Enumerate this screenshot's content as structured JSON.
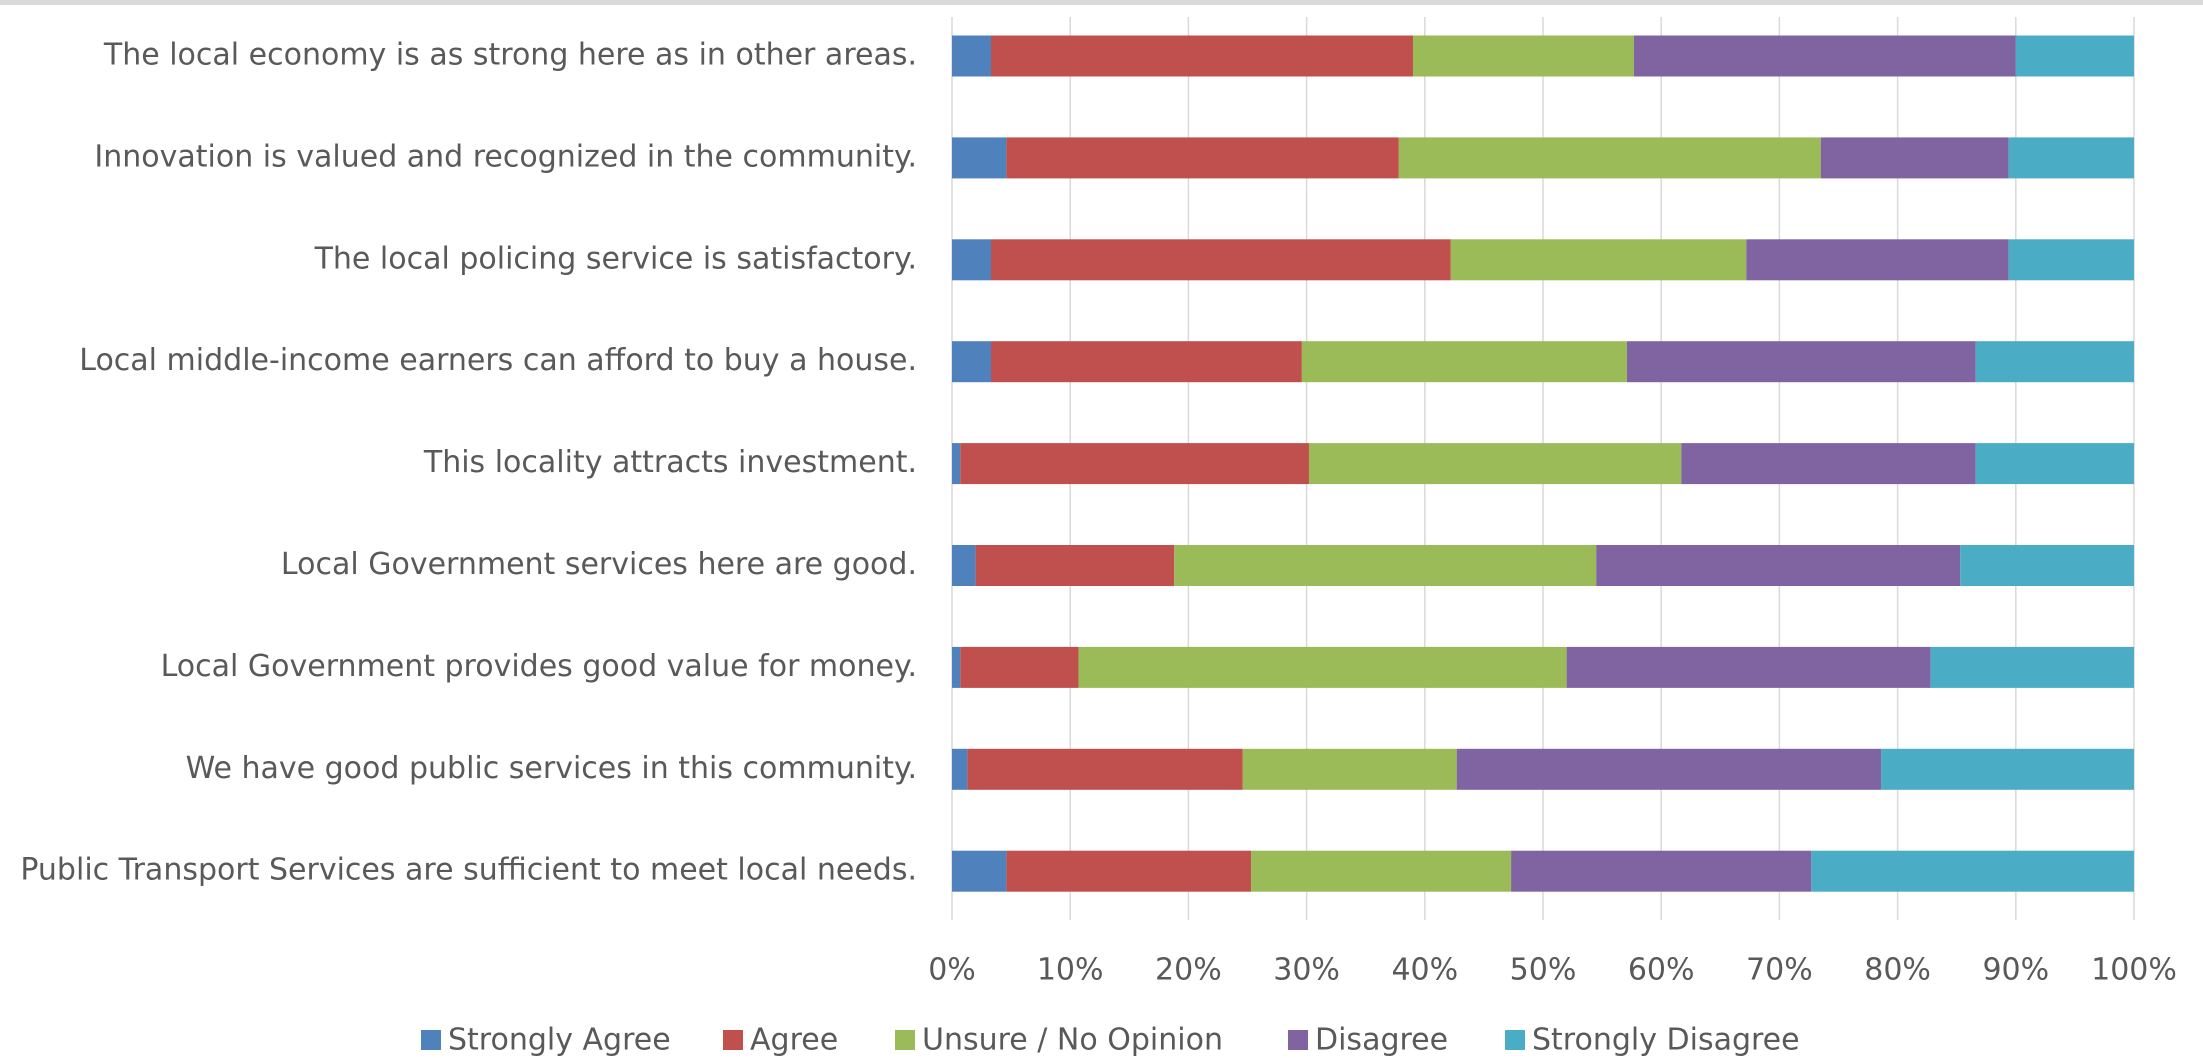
{
  "chart_data": {
    "type": "stacked-bar-horizontal",
    "categories": [
      "The local economy is as strong here as in other areas.",
      "Innovation is valued and recognized in the community.",
      "The local policing service is satisfactory.",
      "Local middle-income earners can afford to buy a house.",
      "This locality attracts investment.",
      "Local Government services here are good.",
      "Local Government provides good value for money.",
      "We have good public services in this community.",
      "Public Transport Services are sufficient to meet local needs."
    ],
    "series": [
      {
        "name": "Strongly Agree",
        "color": "#4f81bd",
        "values": [
          3.3,
          4.6,
          3.3,
          3.3,
          0.7,
          2.0,
          0.7,
          1.3,
          4.6
        ]
      },
      {
        "name": "Agree",
        "color": "#c0504d",
        "values": [
          35.7,
          33.2,
          38.9,
          26.3,
          29.5,
          16.8,
          10.0,
          23.3,
          20.7
        ]
      },
      {
        "name": "Unsure / No Opinion",
        "color": "#9bbb59",
        "values": [
          18.7,
          35.7,
          25.0,
          27.5,
          31.5,
          35.7,
          41.3,
          18.1,
          22.0
        ]
      },
      {
        "name": "Disagree",
        "color": "#8064a2",
        "values": [
          32.3,
          15.9,
          22.2,
          29.5,
          24.9,
          30.8,
          30.8,
          35.9,
          25.4
        ]
      },
      {
        "name": "Strongly Disagree",
        "color": "#4bacc6",
        "values": [
          10.0,
          10.6,
          10.6,
          13.4,
          13.4,
          14.7,
          17.2,
          21.4,
          27.3
        ]
      }
    ],
    "xlim": [
      0,
      100
    ],
    "xticks": [
      {
        "value": 0,
        "label": "0%"
      },
      {
        "value": 10,
        "label": "10%"
      },
      {
        "value": 20,
        "label": "20%"
      },
      {
        "value": 30,
        "label": "30%"
      },
      {
        "value": 40,
        "label": "40%"
      },
      {
        "value": 50,
        "label": "50%"
      },
      {
        "value": 60,
        "label": "60%"
      },
      {
        "value": 70,
        "label": "70%"
      },
      {
        "value": 80,
        "label": "80%"
      },
      {
        "value": 90,
        "label": "90%"
      },
      {
        "value": 100,
        "label": "100%"
      }
    ],
    "grid": true,
    "legend": "bottom"
  }
}
